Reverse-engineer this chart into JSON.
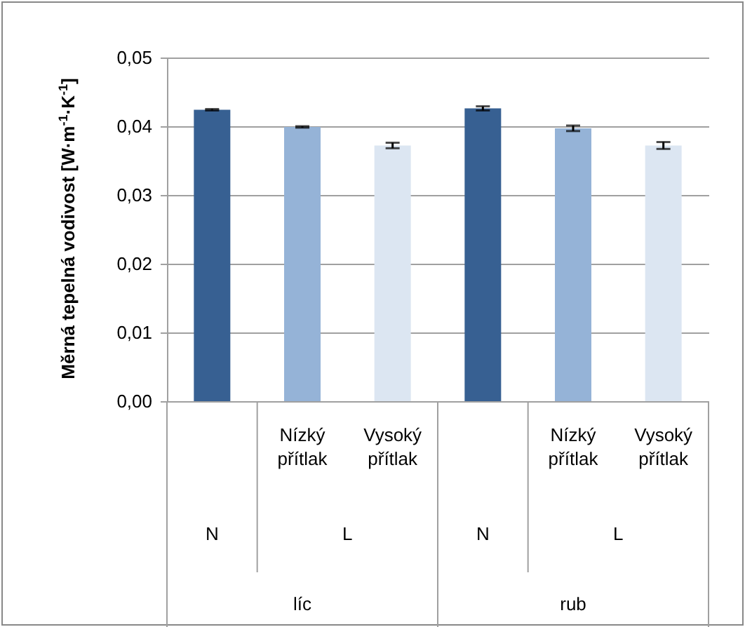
{
  "chart_data": {
    "type": "bar",
    "ylabel": "Měrná tepelná vodivost [W·m$^{-1}$·K$^{-1}$]",
    "categories": [
      null,
      "Nízký přítlak",
      "Vysoký přítlak",
      null,
      "Nízký přítlak",
      "Vysoký přítlak"
    ],
    "values": [
      0.0424,
      0.0399,
      0.0372,
      0.0426,
      0.0397,
      0.0372
    ],
    "errors": [
      0.0001,
      0.0001,
      0.0004,
      0.0003,
      0.0004,
      0.0005
    ],
    "colors": [
      "#376092",
      "#95b3d7",
      "#dce6f2",
      "#376092",
      "#95b3d7",
      "#dce6f2"
    ],
    "ylim": [
      0,
      0.05
    ],
    "yticks": [
      {
        "value": 0,
        "label": "0,00"
      },
      {
        "value": 0.01,
        "label": "0,01"
      },
      {
        "value": 0.02,
        "label": "0,02"
      },
      {
        "value": 0.03,
        "label": "0,03"
      },
      {
        "value": 0.04,
        "label": "0,04"
      },
      {
        "value": 0.05,
        "label": "0,05"
      }
    ],
    "grid": "y",
    "annotations": [
      "N",
      "L",
      "líc",
      "N",
      "L",
      "rub"
    ]
  }
}
